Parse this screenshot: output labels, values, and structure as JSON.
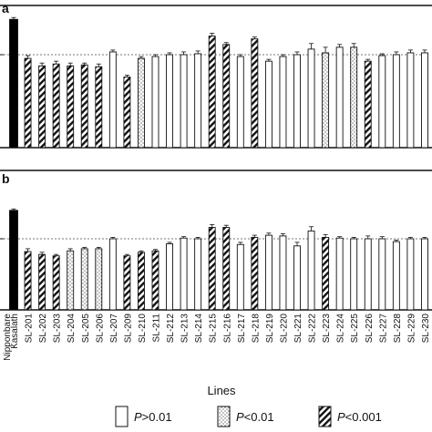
{
  "chart_data": [
    {
      "type": "bar",
      "panel_label": "a",
      "categories": [
        "Kasalath",
        "SL-201",
        "SL-202",
        "SL-203",
        "SL-204",
        "SL-205",
        "SL-206",
        "SL-207",
        "SL-209",
        "SL-210",
        "SL-211",
        "SL-212",
        "SL-213",
        "SL-214",
        "SL-215",
        "SL-216",
        "SL-217",
        "SL-218",
        "SL-219",
        "SL-220",
        "SL-221",
        "SL-222",
        "SL-223",
        "SL-224",
        "SL-225",
        "SL-226",
        "SL-227",
        "SL-228",
        "SL-229",
        "SL-230"
      ],
      "values": [
        1.38,
        0.96,
        0.88,
        0.9,
        0.88,
        0.89,
        0.87,
        1.03,
        0.76,
        0.96,
        0.98,
        1.0,
        1.0,
        1.01,
        1.2,
        1.11,
        0.98,
        1.17,
        0.93,
        0.98,
        1.0,
        1.06,
        1.02,
        1.08,
        1.08,
        0.93,
        0.99,
        1.0,
        1.02,
        1.02
      ],
      "errors": [
        0.02,
        0.03,
        0.03,
        0.03,
        0.03,
        0.02,
        0.03,
        0.02,
        0.02,
        0.02,
        0.02,
        0.02,
        0.03,
        0.03,
        0.03,
        0.02,
        0.02,
        0.02,
        0.02,
        0.02,
        0.03,
        0.06,
        0.06,
        0.03,
        0.04,
        0.02,
        0.02,
        0.03,
        0.03,
        0.03
      ],
      "significance": [
        "control",
        "high",
        "high",
        "high",
        "high",
        "high",
        "high",
        "none",
        "high",
        "mid",
        "none",
        "none",
        "none",
        "none",
        "high",
        "high",
        "none",
        "high",
        "none",
        "none",
        "none",
        "none",
        "mid",
        "none",
        "mid",
        "high",
        "none",
        "none",
        "none",
        "none"
      ],
      "reference": 1.0
    },
    {
      "type": "bar",
      "panel_label": "b",
      "categories": [
        "Kasalath",
        "SL-201",
        "SL-202",
        "SL-203",
        "SL-204",
        "SL-205",
        "SL-206",
        "SL-207",
        "SL-209",
        "SL-210",
        "SL-211",
        "SL-212",
        "SL-213",
        "SL-214",
        "SL-215",
        "SL-216",
        "SL-217",
        "SL-218",
        "SL-219",
        "SL-220",
        "SL-221",
        "SL-222",
        "SL-223",
        "SL-224",
        "SL-225",
        "SL-226",
        "SL-227",
        "SL-228",
        "SL-229",
        "SL-230"
      ],
      "values": [
        1.4,
        0.82,
        0.78,
        0.76,
        0.83,
        0.86,
        0.86,
        1.0,
        0.76,
        0.81,
        0.83,
        0.93,
        1.01,
        1.0,
        1.16,
        1.16,
        0.92,
        1.02,
        1.05,
        1.04,
        0.9,
        1.11,
        1.02,
        1.01,
        1.0,
        1.0,
        1.0,
        0.96,
        1.0,
        1.0
      ],
      "errors": [
        0.02,
        0.04,
        0.03,
        0.02,
        0.03,
        0.02,
        0.02,
        0.02,
        0.02,
        0.02,
        0.02,
        0.02,
        0.02,
        0.02,
        0.04,
        0.03,
        0.03,
        0.03,
        0.03,
        0.03,
        0.05,
        0.06,
        0.04,
        0.02,
        0.02,
        0.04,
        0.03,
        0.02,
        0.02,
        0.02
      ],
      "significance": [
        "control",
        "high",
        "high",
        "high",
        "mid",
        "mid",
        "mid",
        "none",
        "high",
        "high",
        "high",
        "none",
        "none",
        "none",
        "high",
        "high",
        "none",
        "high",
        "none",
        "none",
        "none",
        "none",
        "high",
        "none",
        "none",
        "none",
        "none",
        "none",
        "none",
        "none"
      ],
      "reference": 1.0
    }
  ],
  "reference_label": "Nipponbare",
  "xlabel": "Lines",
  "legend": [
    {
      "label": "P>0.01",
      "italic": "P",
      "rest": ">0.01",
      "pattern": "none"
    },
    {
      "label": "P<0.01",
      "italic": "P",
      "rest": "<0.01",
      "pattern": "mid"
    },
    {
      "label": "P<0.001",
      "italic": "P",
      "rest": "<0.001",
      "pattern": "high"
    }
  ],
  "colors": {
    "control": "#000000",
    "bar_outline": "#111111",
    "reference_line": "#777777"
  }
}
